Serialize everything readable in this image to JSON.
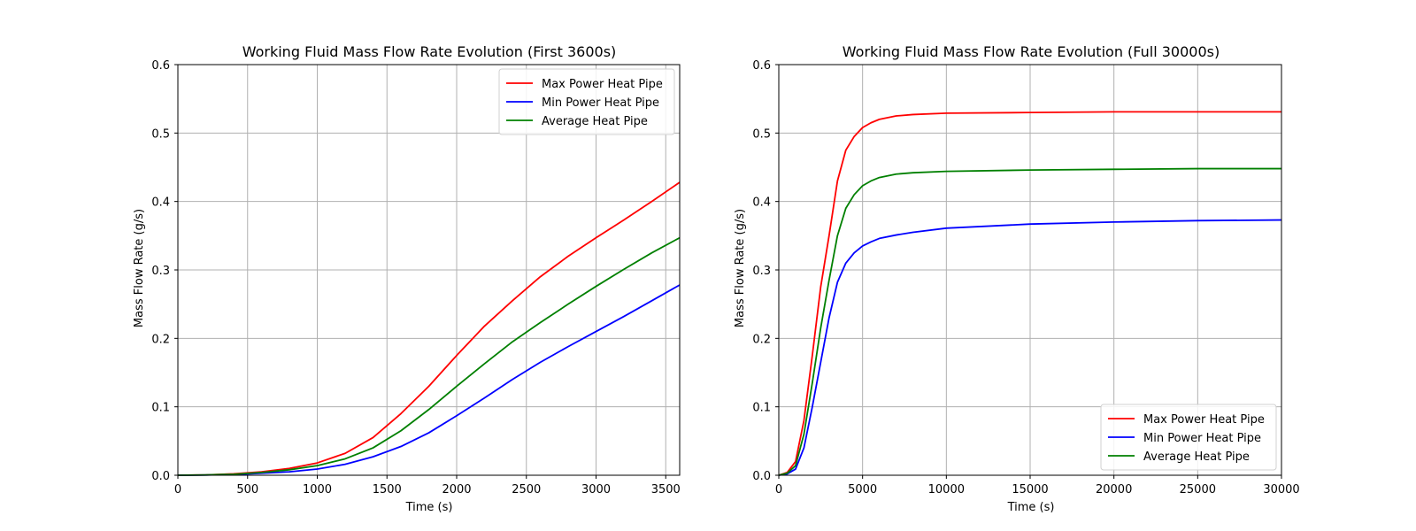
{
  "figure": {
    "colors": {
      "max": "#ff0000",
      "min": "#0000ff",
      "avg": "#008000",
      "grid": "#b0b0b0",
      "axis": "#000000"
    }
  },
  "chart_data": [
    {
      "type": "line",
      "title": "Working Fluid Mass Flow Rate Evolution (First 3600s)",
      "xlabel": "Time (s)",
      "ylabel": "Mass Flow Rate (g/s)",
      "xlim": [
        0,
        3600
      ],
      "ylim": [
        0,
        0.6
      ],
      "xticks": [
        0,
        500,
        1000,
        1500,
        2000,
        2500,
        3000,
        3500
      ],
      "yticks": [
        0.0,
        0.1,
        0.2,
        0.3,
        0.4,
        0.5,
        0.6
      ],
      "xtick_labels": [
        "0",
        "500",
        "1000",
        "1500",
        "2000",
        "2500",
        "3000",
        "3500"
      ],
      "ytick_labels": [
        "0.0",
        "0.1",
        "0.2",
        "0.3",
        "0.4",
        "0.5",
        "0.6"
      ],
      "grid": true,
      "legend_position": "top-right",
      "series": [
        {
          "name": "Max Power Heat Pipe",
          "color": "#ff0000",
          "x": [
            0,
            200,
            400,
            600,
            800,
            1000,
            1200,
            1400,
            1600,
            1800,
            2000,
            2200,
            2400,
            2600,
            2800,
            3000,
            3200,
            3400,
            3600
          ],
          "y": [
            0.0,
            0.0005,
            0.002,
            0.005,
            0.01,
            0.018,
            0.032,
            0.055,
            0.09,
            0.13,
            0.175,
            0.218,
            0.255,
            0.29,
            0.32,
            0.347,
            0.373,
            0.4,
            0.428
          ]
        },
        {
          "name": "Min Power Heat Pipe",
          "color": "#0000ff",
          "x": [
            0,
            200,
            400,
            600,
            800,
            1000,
            1200,
            1400,
            1600,
            1800,
            2000,
            2200,
            2400,
            2600,
            2800,
            3000,
            3200,
            3400,
            3600
          ],
          "y": [
            0.0,
            0.0003,
            0.001,
            0.003,
            0.005,
            0.009,
            0.016,
            0.027,
            0.042,
            0.062,
            0.087,
            0.113,
            0.14,
            0.165,
            0.188,
            0.21,
            0.232,
            0.255,
            0.278
          ]
        },
        {
          "name": "Average Heat Pipe",
          "color": "#008000",
          "x": [
            0,
            200,
            400,
            600,
            800,
            1000,
            1200,
            1400,
            1600,
            1800,
            2000,
            2200,
            2400,
            2600,
            2800,
            3000,
            3200,
            3400,
            3600
          ],
          "y": [
            0.0,
            0.0004,
            0.0015,
            0.004,
            0.008,
            0.014,
            0.024,
            0.04,
            0.065,
            0.096,
            0.13,
            0.163,
            0.195,
            0.223,
            0.25,
            0.276,
            0.301,
            0.325,
            0.347
          ]
        }
      ]
    },
    {
      "type": "line",
      "title": "Working Fluid Mass Flow Rate Evolution (Full 30000s)",
      "xlabel": "Time (s)",
      "ylabel": "Mass Flow Rate (g/s)",
      "xlim": [
        0,
        30000
      ],
      "ylim": [
        0,
        0.6
      ],
      "xticks": [
        0,
        5000,
        10000,
        15000,
        20000,
        25000,
        30000
      ],
      "yticks": [
        0.0,
        0.1,
        0.2,
        0.3,
        0.4,
        0.5,
        0.6
      ],
      "xtick_labels": [
        "0",
        "5000",
        "10000",
        "15000",
        "20000",
        "25000",
        "30000"
      ],
      "ytick_labels": [
        "0.0",
        "0.1",
        "0.2",
        "0.3",
        "0.4",
        "0.5",
        "0.6"
      ],
      "grid": true,
      "legend_position": "bottom-right",
      "series": [
        {
          "name": "Max Power Heat Pipe",
          "color": "#ff0000",
          "x": [
            0,
            500,
            1000,
            1500,
            2000,
            2500,
            3000,
            3500,
            4000,
            4500,
            5000,
            5500,
            6000,
            7000,
            8000,
            10000,
            15000,
            20000,
            25000,
            30000
          ],
          "y": [
            0.0,
            0.004,
            0.02,
            0.08,
            0.175,
            0.275,
            0.35,
            0.43,
            0.475,
            0.495,
            0.508,
            0.515,
            0.52,
            0.525,
            0.527,
            0.529,
            0.53,
            0.531,
            0.531,
            0.531
          ]
        },
        {
          "name": "Min Power Heat Pipe",
          "color": "#0000ff",
          "x": [
            0,
            500,
            1000,
            1500,
            2000,
            2500,
            3000,
            3500,
            4000,
            4500,
            5000,
            5500,
            6000,
            7000,
            8000,
            10000,
            15000,
            20000,
            25000,
            30000
          ],
          "y": [
            0.0,
            0.002,
            0.009,
            0.04,
            0.1,
            0.165,
            0.23,
            0.282,
            0.31,
            0.325,
            0.335,
            0.341,
            0.346,
            0.351,
            0.355,
            0.361,
            0.367,
            0.37,
            0.372,
            0.373
          ]
        },
        {
          "name": "Average Heat Pipe",
          "color": "#008000",
          "x": [
            0,
            500,
            1000,
            1500,
            2000,
            2500,
            3000,
            3500,
            4000,
            4500,
            5000,
            5500,
            6000,
            7000,
            8000,
            10000,
            15000,
            20000,
            25000,
            30000
          ],
          "y": [
            0.0,
            0.003,
            0.014,
            0.06,
            0.135,
            0.215,
            0.285,
            0.35,
            0.39,
            0.41,
            0.423,
            0.43,
            0.435,
            0.44,
            0.442,
            0.444,
            0.446,
            0.447,
            0.448,
            0.448
          ]
        }
      ]
    }
  ]
}
